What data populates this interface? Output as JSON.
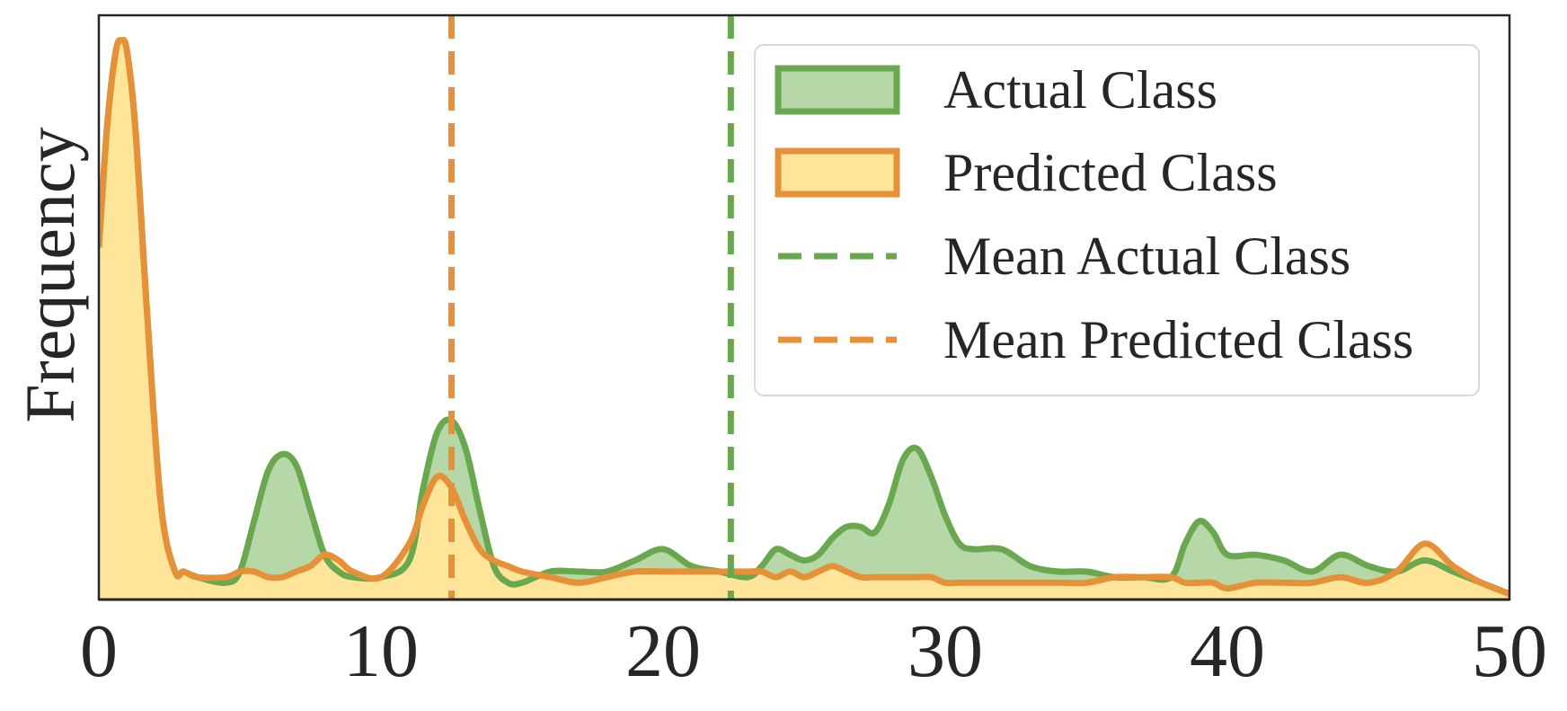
{
  "chart_data": {
    "type": "area",
    "title": "",
    "xlabel": "",
    "ylabel": "Frequency",
    "xlim": [
      0,
      50
    ],
    "ylim": [
      0,
      1
    ],
    "x_ticks": [
      "0",
      "10",
      "20",
      "30",
      "40",
      "50"
    ],
    "grid": false,
    "legend_position": "top-right",
    "colors": {
      "actual_line": "#6aa84f",
      "actual_fill": "#b6d7a8",
      "predicted_line": "#e69138",
      "predicted_fill": "#ffe599",
      "axis": "#262626"
    },
    "series": [
      {
        "name": "Actual Class",
        "kind": "density",
        "x": [
          0,
          0.3,
          0.6,
          0.8,
          1.0,
          1.3,
          1.7,
          2.2,
          2.7,
          3.0,
          3.5,
          4.5,
          5.0,
          5.5,
          6.0,
          6.5,
          7.0,
          7.5,
          8.0,
          8.5,
          9.0,
          10.0,
          11.0,
          11.5,
          12.0,
          12.5,
          13.0,
          13.5,
          14.0,
          14.5,
          15.0,
          16.0,
          17.0,
          18.0,
          19.0,
          20.0,
          21.0,
          22.0,
          23.0,
          23.5,
          24.0,
          24.5,
          25.0,
          25.5,
          26.0,
          26.5,
          27.0,
          27.5,
          28.0,
          28.5,
          29.0,
          29.5,
          30.0,
          30.5,
          31.0,
          32.0,
          33.0,
          34.0,
          35.0,
          36.0,
          37.0,
          38.0,
          38.5,
          39.0,
          39.5,
          40.0,
          41.0,
          42.0,
          43.0,
          44.0,
          45.0,
          46.0,
          47.0,
          48.0,
          49.0,
          50.0
        ],
        "values": [
          0.63,
          0.85,
          0.98,
          1.0,
          0.98,
          0.84,
          0.52,
          0.17,
          0.05,
          0.05,
          0.04,
          0.03,
          0.05,
          0.14,
          0.23,
          0.26,
          0.24,
          0.16,
          0.08,
          0.05,
          0.04,
          0.04,
          0.07,
          0.2,
          0.3,
          0.32,
          0.27,
          0.16,
          0.06,
          0.03,
          0.03,
          0.05,
          0.05,
          0.05,
          0.07,
          0.09,
          0.06,
          0.05,
          0.04,
          0.06,
          0.09,
          0.08,
          0.07,
          0.08,
          0.11,
          0.13,
          0.13,
          0.12,
          0.17,
          0.25,
          0.27,
          0.22,
          0.15,
          0.1,
          0.09,
          0.09,
          0.06,
          0.05,
          0.05,
          0.04,
          0.04,
          0.04,
          0.1,
          0.14,
          0.12,
          0.08,
          0.08,
          0.07,
          0.05,
          0.08,
          0.06,
          0.05,
          0.07,
          0.05,
          0.03,
          0.01
        ]
      },
      {
        "name": "Predicted Class",
        "kind": "density",
        "x": [
          0,
          0.3,
          0.6,
          0.8,
          1.0,
          1.3,
          1.7,
          2.2,
          2.7,
          3.0,
          3.5,
          4.5,
          5.0,
          5.5,
          6.0,
          6.5,
          7.0,
          7.5,
          8.0,
          8.5,
          9.0,
          10.0,
          11.0,
          11.5,
          12.0,
          12.5,
          13.0,
          13.5,
          14.0,
          14.5,
          15.0,
          16.0,
          17.0,
          18.0,
          19.0,
          20.0,
          21.0,
          22.0,
          23.0,
          23.5,
          24.0,
          24.5,
          25.0,
          25.5,
          26.0,
          26.5,
          27.0,
          27.5,
          28.0,
          28.5,
          29.0,
          29.5,
          30.0,
          30.5,
          31.0,
          32.0,
          33.0,
          34.0,
          35.0,
          36.0,
          37.0,
          38.0,
          38.5,
          39.0,
          39.5,
          40.0,
          41.0,
          42.0,
          43.0,
          44.0,
          45.0,
          46.0,
          47.0,
          48.0,
          49.0,
          50.0
        ],
        "values": [
          0.63,
          0.85,
          0.98,
          1.0,
          0.98,
          0.84,
          0.52,
          0.17,
          0.05,
          0.05,
          0.04,
          0.04,
          0.05,
          0.05,
          0.04,
          0.04,
          0.05,
          0.06,
          0.08,
          0.07,
          0.05,
          0.04,
          0.1,
          0.17,
          0.22,
          0.2,
          0.14,
          0.09,
          0.07,
          0.06,
          0.05,
          0.04,
          0.03,
          0.04,
          0.05,
          0.05,
          0.05,
          0.05,
          0.05,
          0.05,
          0.04,
          0.05,
          0.04,
          0.05,
          0.06,
          0.05,
          0.04,
          0.04,
          0.04,
          0.04,
          0.04,
          0.04,
          0.03,
          0.03,
          0.03,
          0.03,
          0.03,
          0.03,
          0.03,
          0.04,
          0.04,
          0.04,
          0.03,
          0.03,
          0.03,
          0.02,
          0.03,
          0.03,
          0.03,
          0.04,
          0.03,
          0.05,
          0.1,
          0.06,
          0.03,
          0.01
        ]
      }
    ],
    "reference_lines": [
      {
        "name": "Mean Actual Class",
        "x": 22.4,
        "style": "dashed",
        "color": "#6aa84f"
      },
      {
        "name": "Mean Predicted Class",
        "x": 12.5,
        "style": "dashed",
        "color": "#e69138"
      }
    ],
    "legend": [
      {
        "label": "Actual Class",
        "kind": "patch",
        "color": "#6aa84f",
        "fill": "#b6d7a8"
      },
      {
        "label": "Predicted Class",
        "kind": "patch",
        "color": "#e69138",
        "fill": "#ffe599"
      },
      {
        "label": "Mean Actual Class",
        "kind": "dashed",
        "color": "#6aa84f"
      },
      {
        "label": "Mean Predicted Class",
        "kind": "dashed",
        "color": "#e69138"
      }
    ]
  }
}
